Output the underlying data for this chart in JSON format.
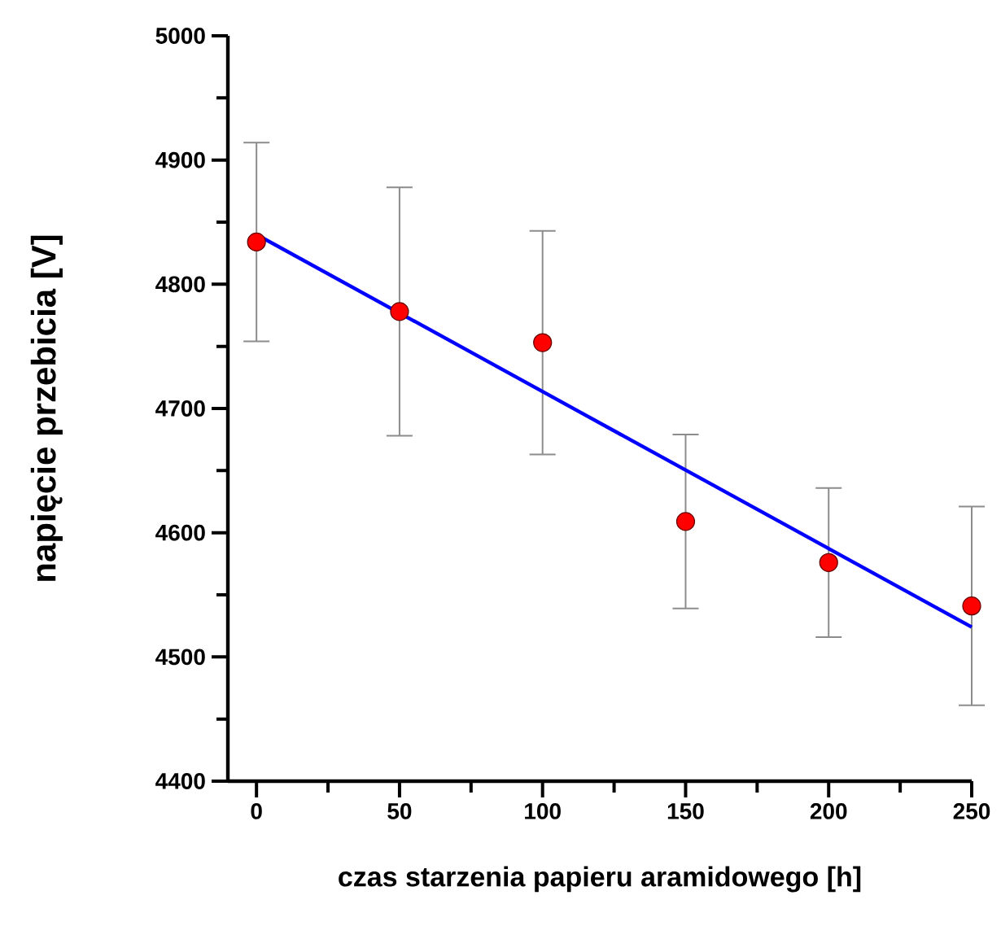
{
  "chart_data": {
    "type": "scatter",
    "xlabel": "czas starzenia papieru aramidowego [h]",
    "ylabel": "napięcie przebicia  [V]",
    "xlim": [
      -10,
      250
    ],
    "ylim": [
      4400,
      5000
    ],
    "xticks": [
      0,
      50,
      100,
      150,
      200,
      250
    ],
    "yticks": [
      4400,
      4500,
      4600,
      4700,
      4800,
      4900,
      5000
    ],
    "grid": false,
    "series": [
      {
        "marker": "circle",
        "color": "#ff0000",
        "x": [
          0,
          50,
          100,
          150,
          200,
          250
        ],
        "values": [
          4834,
          4778,
          4753,
          4609,
          4576,
          4541
        ],
        "errors": [
          80,
          100,
          90,
          70,
          60,
          80
        ]
      },
      {
        "type": "line",
        "color": "#0000ff",
        "x": [
          0,
          250
        ],
        "values": [
          4840,
          4524
        ]
      }
    ]
  }
}
